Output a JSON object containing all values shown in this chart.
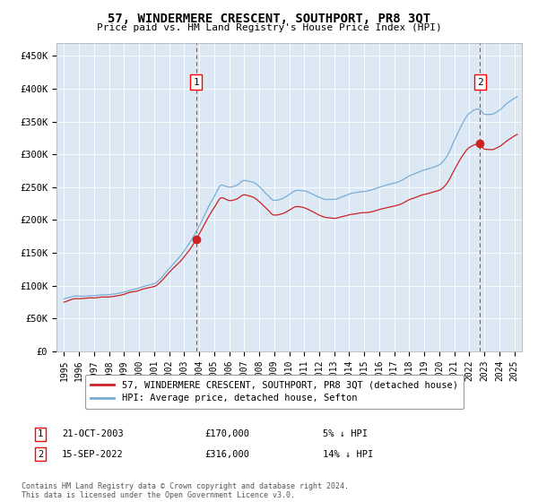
{
  "title": "57, WINDERMERE CRESCENT, SOUTHPORT, PR8 3QT",
  "subtitle": "Price paid vs. HM Land Registry's House Price Index (HPI)",
  "background_color": "#ffffff",
  "plot_bg_color": "#dce9f5",
  "hpi_color": "#7aadd4",
  "price_color": "#cc2222",
  "sale1_date_num": 2003.81,
  "sale1_price": 170000,
  "sale1_label": "1",
  "sale2_date_num": 2022.71,
  "sale2_price": 316000,
  "sale2_label": "2",
  "ylim": [
    0,
    470000
  ],
  "xlim": [
    1994.5,
    2025.5
  ],
  "yticks": [
    0,
    50000,
    100000,
    150000,
    200000,
    250000,
    300000,
    350000,
    400000,
    450000
  ],
  "ytick_labels": [
    "£0",
    "£50K",
    "£100K",
    "£150K",
    "£200K",
    "£250K",
    "£300K",
    "£350K",
    "£400K",
    "£450K"
  ],
  "xticks": [
    1995,
    1996,
    1997,
    1998,
    1999,
    2000,
    2001,
    2002,
    2003,
    2004,
    2005,
    2006,
    2007,
    2008,
    2009,
    2010,
    2011,
    2012,
    2013,
    2014,
    2015,
    2016,
    2017,
    2018,
    2019,
    2020,
    2021,
    2022,
    2023,
    2024,
    2025
  ],
  "legend_entry1": "57, WINDERMERE CRESCENT, SOUTHPORT, PR8 3QT (detached house)",
  "legend_entry2": "HPI: Average price, detached house, Sefton",
  "note1_label": "1",
  "note1_date": "21-OCT-2003",
  "note1_price": "£170,000",
  "note1_hpi": "5% ↓ HPI",
  "note2_label": "2",
  "note2_date": "15-SEP-2022",
  "note2_price": "£316,000",
  "note2_hpi": "14% ↓ HPI",
  "footer": "Contains HM Land Registry data © Crown copyright and database right 2024.\nThis data is licensed under the Open Government Licence v3.0."
}
